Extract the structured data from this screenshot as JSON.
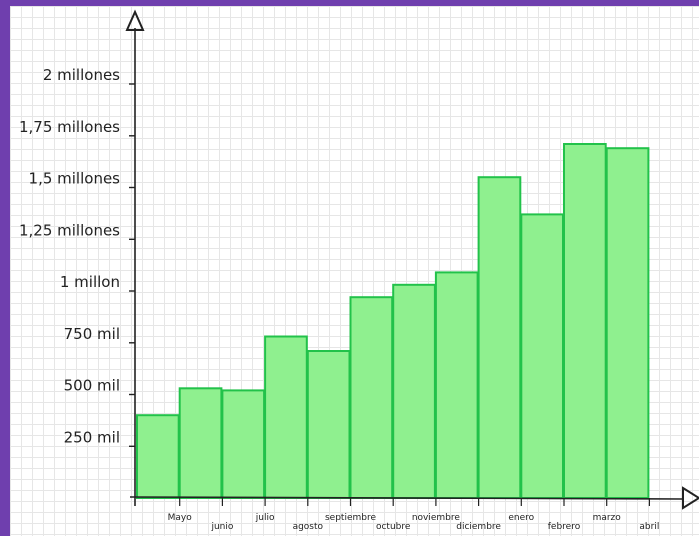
{
  "colors": {
    "background_border": "#6f3fae",
    "bar_fill": "#8ff08f",
    "bar_stroke": "#22c24a",
    "axis": "#222222"
  },
  "chart_data": {
    "type": "bar",
    "title": "",
    "xlabel": "",
    "ylabel": "",
    "categories": [
      "Mayo",
      "junio",
      "julio",
      "agosto",
      "septiembre",
      "octubre",
      "noviembre",
      "diciembre",
      "enero",
      "febrero",
      "marzo",
      "abril"
    ],
    "values": [
      400000,
      530000,
      520000,
      780000,
      710000,
      970000,
      1030000,
      1090000,
      1550000,
      1370000,
      1710000,
      1690000
    ],
    "ylim": [
      0,
      2000000
    ],
    "y_ticks": [
      {
        "value": 250000,
        "label": "250 mil"
      },
      {
        "value": 500000,
        "label": "500 mil"
      },
      {
        "value": 750000,
        "label": "750 mil"
      },
      {
        "value": 1000000,
        "label": "1 millon"
      },
      {
        "value": 1250000,
        "label": "1,25 millones"
      },
      {
        "value": 1500000,
        "label": "1,5 millones"
      },
      {
        "value": 1750000,
        "label": "1,75 millones"
      },
      {
        "value": 2000000,
        "label": "2 millones"
      }
    ],
    "grid": true,
    "legend": "none"
  }
}
